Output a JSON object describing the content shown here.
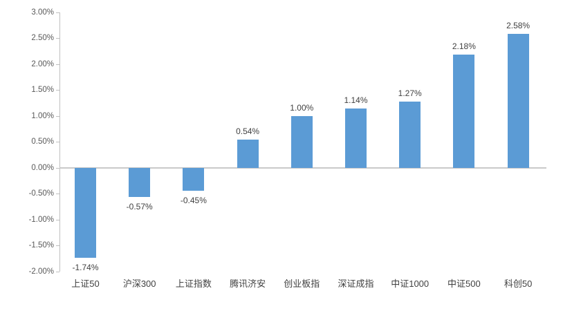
{
  "chart_data": {
    "type": "bar",
    "title": "",
    "xlabel": "",
    "ylabel": "",
    "categories": [
      "上证50",
      "沪深300",
      "上证指数",
      "腾讯济安",
      "创业板指",
      "深证成指",
      "中证1000",
      "中证500",
      "科创50"
    ],
    "values": [
      -1.74,
      -0.57,
      -0.45,
      0.54,
      1.0,
      1.14,
      1.27,
      2.18,
      2.58
    ],
    "value_labels": [
      "-1.74%",
      "-0.57%",
      "-0.45%",
      "0.54%",
      "1.00%",
      "1.14%",
      "1.27%",
      "2.18%",
      "2.58%"
    ],
    "ylim": [
      -2.0,
      3.0
    ],
    "y_tick_values": [
      3.0,
      2.5,
      2.0,
      1.5,
      1.0,
      0.5,
      0.0,
      -0.5,
      -1.0,
      -1.5,
      -2.0
    ],
    "y_tick_labels": [
      "3.00%",
      "2.50%",
      "2.00%",
      "1.50%",
      "1.00%",
      "0.50%",
      "0.00%",
      "-0.50%",
      "-1.00%",
      "-1.50%",
      "-2.00%"
    ],
    "grid": "off",
    "legend": "none",
    "colors": {
      "bar": "#5B9BD5",
      "axis": "#BFBFBF",
      "zero_line": "#C9C9C9",
      "tick_label": "#595959",
      "data_label": "#404040",
      "category_label": "#404040",
      "background": "#FFFFFF"
    }
  }
}
